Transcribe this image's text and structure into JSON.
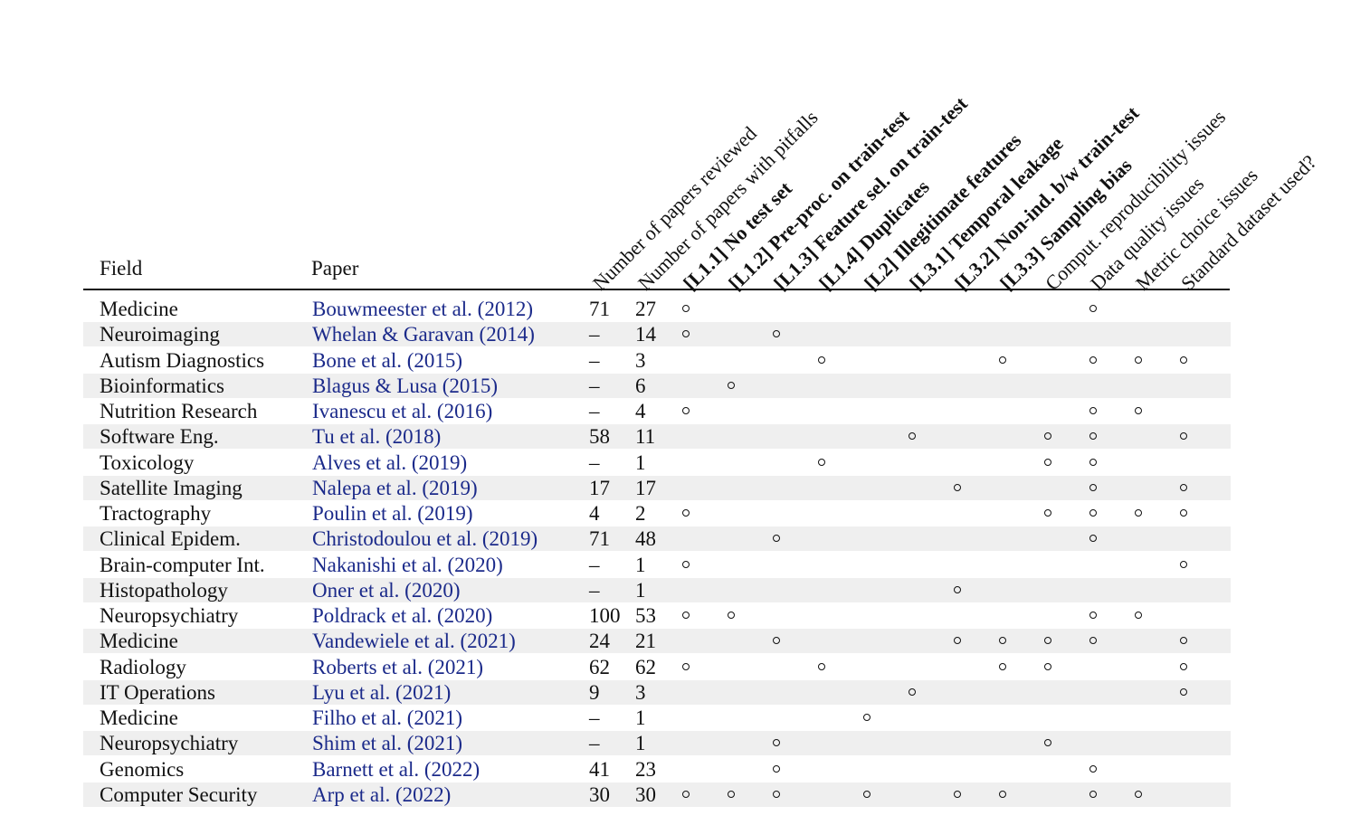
{
  "headers": {
    "field": "Field",
    "paper": "Paper",
    "columns": [
      {
        "label": "Number of papers reviewed",
        "bold": false
      },
      {
        "label": "Number of papers with pitfalls",
        "bold": false
      },
      {
        "label": "[L1.1] No test set",
        "bold": true
      },
      {
        "label": "[L1.2] Pre-proc. on train-test",
        "bold": true
      },
      {
        "label": "[L1.3] Feature sel. on train-test",
        "bold": true
      },
      {
        "label": "[L1.4] Duplicates",
        "bold": true
      },
      {
        "label": "[L2] Illegitimate features",
        "bold": true
      },
      {
        "label": "[L3.1] Temporal leakage",
        "bold": true
      },
      {
        "label": "[L3.2] Non-ind. b/w train-test",
        "bold": true
      },
      {
        "label": "[L3.3] Sampling bias",
        "bold": true
      },
      {
        "label": "Comput. reproducibility issues",
        "bold": false
      },
      {
        "label": "Data quality issues",
        "bold": false
      },
      {
        "label": "Metric choice issues",
        "bold": false
      },
      {
        "label": "Standard dataset used?",
        "bold": false
      }
    ]
  },
  "rows": [
    {
      "field": "Medicine",
      "paper": "Bouwmeester et al. (2012)",
      "reviewed": "71",
      "pitfalls": "27",
      "marks": [
        1,
        0,
        0,
        0,
        0,
        0,
        0,
        0,
        0,
        1,
        0,
        0
      ]
    },
    {
      "field": "Neuroimaging",
      "paper": "Whelan & Garavan (2014)",
      "reviewed": "–",
      "pitfalls": "14",
      "marks": [
        1,
        0,
        1,
        0,
        0,
        0,
        0,
        0,
        0,
        0,
        0,
        0
      ]
    },
    {
      "field": "Autism Diagnostics",
      "paper": "Bone et al. (2015)",
      "reviewed": "–",
      "pitfalls": "3",
      "marks": [
        0,
        0,
        0,
        1,
        0,
        0,
        0,
        1,
        0,
        1,
        1,
        1
      ]
    },
    {
      "field": "Bioinformatics",
      "paper": "Blagus & Lusa (2015)",
      "reviewed": "–",
      "pitfalls": "6",
      "marks": [
        0,
        1,
        0,
        0,
        0,
        0,
        0,
        0,
        0,
        0,
        0,
        0
      ]
    },
    {
      "field": "Nutrition Research",
      "paper": "Ivanescu et al. (2016)",
      "reviewed": "–",
      "pitfalls": "4",
      "marks": [
        1,
        0,
        0,
        0,
        0,
        0,
        0,
        0,
        0,
        1,
        1,
        0
      ]
    },
    {
      "field": "Software Eng.",
      "paper": "Tu et al. (2018)",
      "reviewed": "58",
      "pitfalls": "11",
      "marks": [
        0,
        0,
        0,
        0,
        0,
        1,
        0,
        0,
        1,
        1,
        0,
        1
      ]
    },
    {
      "field": "Toxicology",
      "paper": "Alves et al. (2019)",
      "reviewed": "–",
      "pitfalls": "1",
      "marks": [
        0,
        0,
        0,
        1,
        0,
        0,
        0,
        0,
        1,
        1,
        0,
        0
      ]
    },
    {
      "field": "Satellite Imaging",
      "paper": "Nalepa et al. (2019)",
      "reviewed": "17",
      "pitfalls": "17",
      "marks": [
        0,
        0,
        0,
        0,
        0,
        0,
        1,
        0,
        0,
        1,
        0,
        1
      ]
    },
    {
      "field": "Tractography",
      "paper": "Poulin et al. (2019)",
      "reviewed": "4",
      "pitfalls": "2",
      "marks": [
        1,
        0,
        0,
        0,
        0,
        0,
        0,
        0,
        1,
        1,
        1,
        1
      ]
    },
    {
      "field": "Clinical Epidem.",
      "paper": "Christodoulou et al. (2019)",
      "reviewed": "71",
      "pitfalls": "48",
      "marks": [
        0,
        0,
        1,
        0,
        0,
        0,
        0,
        0,
        0,
        1,
        0,
        0
      ]
    },
    {
      "field": "Brain-computer Int.",
      "paper": "Nakanishi et al. (2020)",
      "reviewed": "–",
      "pitfalls": "1",
      "marks": [
        1,
        0,
        0,
        0,
        0,
        0,
        0,
        0,
        0,
        0,
        0,
        1
      ]
    },
    {
      "field": "Histopathology",
      "paper": "Oner et al. (2020)",
      "reviewed": "–",
      "pitfalls": "1",
      "marks": [
        0,
        0,
        0,
        0,
        0,
        0,
        1,
        0,
        0,
        0,
        0,
        0
      ]
    },
    {
      "field": "Neuropsychiatry",
      "paper": "Poldrack et al. (2020)",
      "reviewed": "100",
      "pitfalls": "53",
      "marks": [
        1,
        1,
        0,
        0,
        0,
        0,
        0,
        0,
        0,
        1,
        1,
        0
      ]
    },
    {
      "field": "Medicine",
      "paper": "Vandewiele et al. (2021)",
      "reviewed": "24",
      "pitfalls": "21",
      "marks": [
        0,
        0,
        1,
        0,
        0,
        0,
        1,
        1,
        1,
        1,
        0,
        1
      ]
    },
    {
      "field": "Radiology",
      "paper": "Roberts et al. (2021)",
      "reviewed": "62",
      "pitfalls": "62",
      "marks": [
        1,
        0,
        0,
        1,
        0,
        0,
        0,
        1,
        1,
        0,
        0,
        1
      ]
    },
    {
      "field": "IT Operations",
      "paper": "Lyu et al. (2021)",
      "reviewed": "9",
      "pitfalls": "3",
      "marks": [
        0,
        0,
        0,
        0,
        0,
        1,
        0,
        0,
        0,
        0,
        0,
        1
      ]
    },
    {
      "field": "Medicine",
      "paper": "Filho et al. (2021)",
      "reviewed": "–",
      "pitfalls": "1",
      "marks": [
        0,
        0,
        0,
        0,
        1,
        0,
        0,
        0,
        0,
        0,
        0,
        0
      ]
    },
    {
      "field": "Neuropsychiatry",
      "paper": "Shim et al. (2021)",
      "reviewed": "–",
      "pitfalls": "1",
      "marks": [
        0,
        0,
        1,
        0,
        0,
        0,
        0,
        0,
        1,
        0,
        0,
        0
      ]
    },
    {
      "field": "Genomics",
      "paper": "Barnett et al. (2022)",
      "reviewed": "41",
      "pitfalls": "23",
      "marks": [
        0,
        0,
        1,
        0,
        0,
        0,
        0,
        0,
        0,
        1,
        0,
        0
      ]
    },
    {
      "field": "Computer Security",
      "paper": "Arp et al. (2022)",
      "reviewed": "30",
      "pitfalls": "30",
      "marks": [
        1,
        1,
        1,
        0,
        1,
        0,
        1,
        1,
        0,
        1,
        1,
        0
      ]
    }
  ]
}
